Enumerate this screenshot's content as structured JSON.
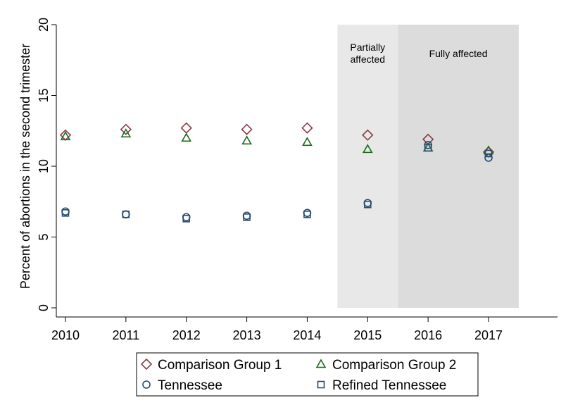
{
  "chart_data": {
    "type": "scatter",
    "title": "",
    "xlabel": "",
    "ylabel": "Percent of abortions in the second trimester",
    "x": [
      2010,
      2011,
      2012,
      2013,
      2014,
      2015,
      2016,
      2017
    ],
    "xlim": [
      2010,
      2018
    ],
    "ylim": [
      0,
      20
    ],
    "yticks": [
      0,
      5,
      10,
      15,
      20
    ],
    "grid": false,
    "legend_position": "bottom",
    "shaded_regions": [
      {
        "label_lines": [
          "Partially",
          "affected"
        ],
        "x_range": [
          2014.5,
          2015.5
        ],
        "color": "#e8e8e8"
      },
      {
        "label_lines": [
          "Fully  affected"
        ],
        "x_range": [
          2015.5,
          2017.5
        ],
        "color": "#dcdcdc"
      }
    ],
    "series": [
      {
        "name": "Comparison Group 1",
        "marker": "diamond",
        "color": "#8b3a47",
        "values": [
          12.2,
          12.6,
          12.7,
          12.6,
          12.7,
          12.2,
          11.9,
          11.0
        ]
      },
      {
        "name": "Comparison Group 2",
        "marker": "triangle",
        "color": "#1a6b1a",
        "values": [
          12.1,
          12.3,
          12.0,
          11.8,
          11.7,
          11.2,
          11.3,
          11.1
        ]
      },
      {
        "name": "Tennessee",
        "marker": "circle",
        "color": "#1f4e79",
        "values": [
          6.8,
          6.6,
          6.4,
          6.5,
          6.7,
          7.4,
          11.5,
          10.6
        ]
      },
      {
        "name": "Refined Tennessee",
        "marker": "square",
        "color": "#2b4a6b",
        "values": [
          6.7,
          6.6,
          6.3,
          6.4,
          6.6,
          7.3,
          11.3,
          10.9
        ]
      }
    ]
  }
}
